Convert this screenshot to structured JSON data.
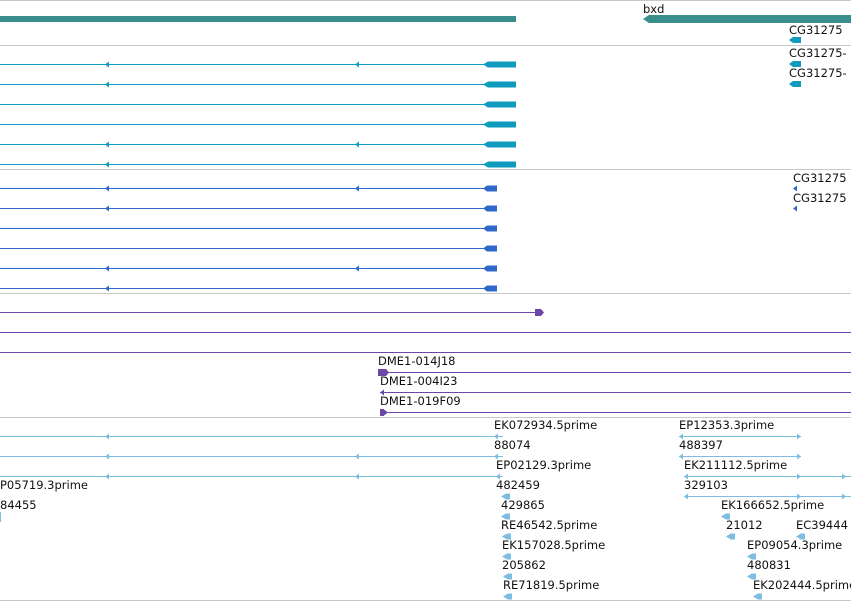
{
  "browser": {
    "colors": {
      "gene": "#3a8f8c",
      "transcript": "#0e9bbd",
      "protein": "#2f68c7",
      "clone": "#6b48a8",
      "est": "#7fbde0",
      "divider": "#c8c8c8"
    },
    "gene_track": {
      "labels": [
        "bxd",
        "CG31275"
      ]
    },
    "transcript_track": {
      "labels": [
        "CG31275-",
        "CG31275-"
      ]
    },
    "protein_track": {
      "labels": [
        "CG31275",
        "CG31275"
      ]
    },
    "clone_track": {
      "labels": [
        "DME1-014J18",
        "DME1-004I23",
        "DME1-019F09"
      ]
    },
    "est_track": {
      "labels": [
        "EK072934.5prime",
        "EP12353.3prime",
        "88074",
        "488397",
        "EP02129.3prime",
        "EK211112.5prime",
        "P05719.3prime",
        "482459",
        "329103",
        "84455",
        "429865",
        "EK166652.5prime",
        "RE46542.5prime",
        "21012",
        "EC39444",
        "EK157028.5prime",
        "EP09054.3prime",
        "205862",
        "480831",
        "RE71819.5prime",
        "EK202444.5prime"
      ]
    }
  }
}
